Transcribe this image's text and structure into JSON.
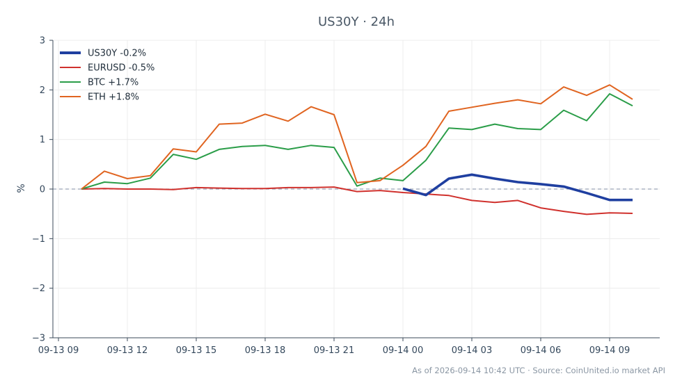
{
  "chart_data": {
    "type": "line",
    "title": "US30Y · 24h",
    "xlabel": "",
    "ylabel": "%",
    "xlim": [
      "2026-09-13 09:00",
      "2026-09-14 11:15"
    ],
    "ylim": [
      -3,
      3
    ],
    "x_ticks": [
      "09-13 09",
      "09-13 12",
      "09-13 15",
      "09-13 18",
      "09-13 21",
      "09-14 00",
      "09-14 03",
      "09-14 06",
      "09-14 09"
    ],
    "y_ticks": [
      3,
      2,
      1,
      0,
      -1,
      -2,
      -3
    ],
    "y_tick_labels": [
      "3",
      "2",
      "1",
      "0",
      "−1",
      "−2",
      "−3"
    ],
    "grid": true,
    "legend": "top-left",
    "reference_line": {
      "y": 0,
      "style": "dashed"
    },
    "series": [
      {
        "name": "US30Y -0.2%",
        "color": "#1f3fa0",
        "x": [
          "2026-09-14 00:00",
          "2026-09-14 01:00",
          "2026-09-14 02:00",
          "2026-09-14 03:00",
          "2026-09-14 04:00",
          "2026-09-14 05:00",
          "2026-09-14 06:00",
          "2026-09-14 07:00",
          "2026-09-14 08:00",
          "2026-09-14 09:00",
          "2026-09-14 10:00"
        ],
        "values": [
          0.01,
          -0.12,
          0.21,
          0.29,
          0.21,
          0.14,
          0.1,
          0.05,
          -0.08,
          -0.22,
          -0.22
        ]
      },
      {
        "name": "EURUSD -0.5%",
        "color": "#d0312d",
        "x": [
          "2026-09-13 10:00",
          "2026-09-13 11:00",
          "2026-09-13 12:00",
          "2026-09-13 13:00",
          "2026-09-13 14:00",
          "2026-09-13 15:00",
          "2026-09-13 16:00",
          "2026-09-13 17:00",
          "2026-09-13 18:00",
          "2026-09-13 19:00",
          "2026-09-13 20:00",
          "2026-09-13 21:00",
          "2026-09-13 22:00",
          "2026-09-13 23:00",
          "2026-09-14 00:00",
          "2026-09-14 01:00",
          "2026-09-14 02:00",
          "2026-09-14 03:00",
          "2026-09-14 04:00",
          "2026-09-14 05:00",
          "2026-09-14 06:00",
          "2026-09-14 07:00",
          "2026-09-14 08:00",
          "2026-09-14 09:00",
          "2026-09-14 10:00"
        ],
        "values": [
          0.0,
          0.01,
          0.0,
          0.0,
          -0.01,
          0.03,
          0.02,
          0.01,
          0.01,
          0.03,
          0.03,
          0.04,
          -0.05,
          -0.03,
          -0.07,
          -0.1,
          -0.13,
          -0.23,
          -0.27,
          -0.23,
          -0.38,
          -0.45,
          -0.51,
          -0.48,
          -0.49
        ]
      },
      {
        "name": "BTC +1.7%",
        "color": "#2a9d48",
        "x": [
          "2026-09-13 10:00",
          "2026-09-13 11:00",
          "2026-09-13 12:00",
          "2026-09-13 13:00",
          "2026-09-13 14:00",
          "2026-09-13 15:00",
          "2026-09-13 16:00",
          "2026-09-13 17:00",
          "2026-09-13 18:00",
          "2026-09-13 19:00",
          "2026-09-13 20:00",
          "2026-09-13 21:00",
          "2026-09-13 22:00",
          "2026-09-13 23:00",
          "2026-09-14 00:00",
          "2026-09-14 01:00",
          "2026-09-14 02:00",
          "2026-09-14 03:00",
          "2026-09-14 04:00",
          "2026-09-14 05:00",
          "2026-09-14 06:00",
          "2026-09-14 07:00",
          "2026-09-14 08:00",
          "2026-09-14 09:00",
          "2026-09-14 10:00"
        ],
        "values": [
          0.0,
          0.14,
          0.11,
          0.22,
          0.7,
          0.6,
          0.8,
          0.86,
          0.88,
          0.8,
          0.88,
          0.84,
          0.06,
          0.22,
          0.17,
          0.58,
          1.23,
          1.2,
          1.31,
          1.22,
          1.2,
          1.59,
          1.38,
          1.92,
          1.68
        ]
      },
      {
        "name": "ETH +1.8%",
        "color": "#e06420",
        "x": [
          "2026-09-13 10:00",
          "2026-09-13 11:00",
          "2026-09-13 12:00",
          "2026-09-13 13:00",
          "2026-09-13 14:00",
          "2026-09-13 15:00",
          "2026-09-13 16:00",
          "2026-09-13 17:00",
          "2026-09-13 18:00",
          "2026-09-13 19:00",
          "2026-09-13 20:00",
          "2026-09-13 21:00",
          "2026-09-13 22:00",
          "2026-09-13 23:00",
          "2026-09-14 00:00",
          "2026-09-14 01:00",
          "2026-09-14 02:00",
          "2026-09-14 03:00",
          "2026-09-14 04:00",
          "2026-09-14 05:00",
          "2026-09-14 06:00",
          "2026-09-14 07:00",
          "2026-09-14 08:00",
          "2026-09-14 09:00",
          "2026-09-14 10:00"
        ],
        "values": [
          0.0,
          0.36,
          0.21,
          0.27,
          0.81,
          0.75,
          1.31,
          1.33,
          1.51,
          1.37,
          1.66,
          1.5,
          0.13,
          0.17,
          0.48,
          0.86,
          1.57,
          1.65,
          1.73,
          1.8,
          1.72,
          2.06,
          1.89,
          2.1,
          1.81
        ]
      }
    ]
  },
  "footer": {
    "text": "As of 2026-09-14 10:42 UTC · Source: CoinUnited.io market API"
  }
}
